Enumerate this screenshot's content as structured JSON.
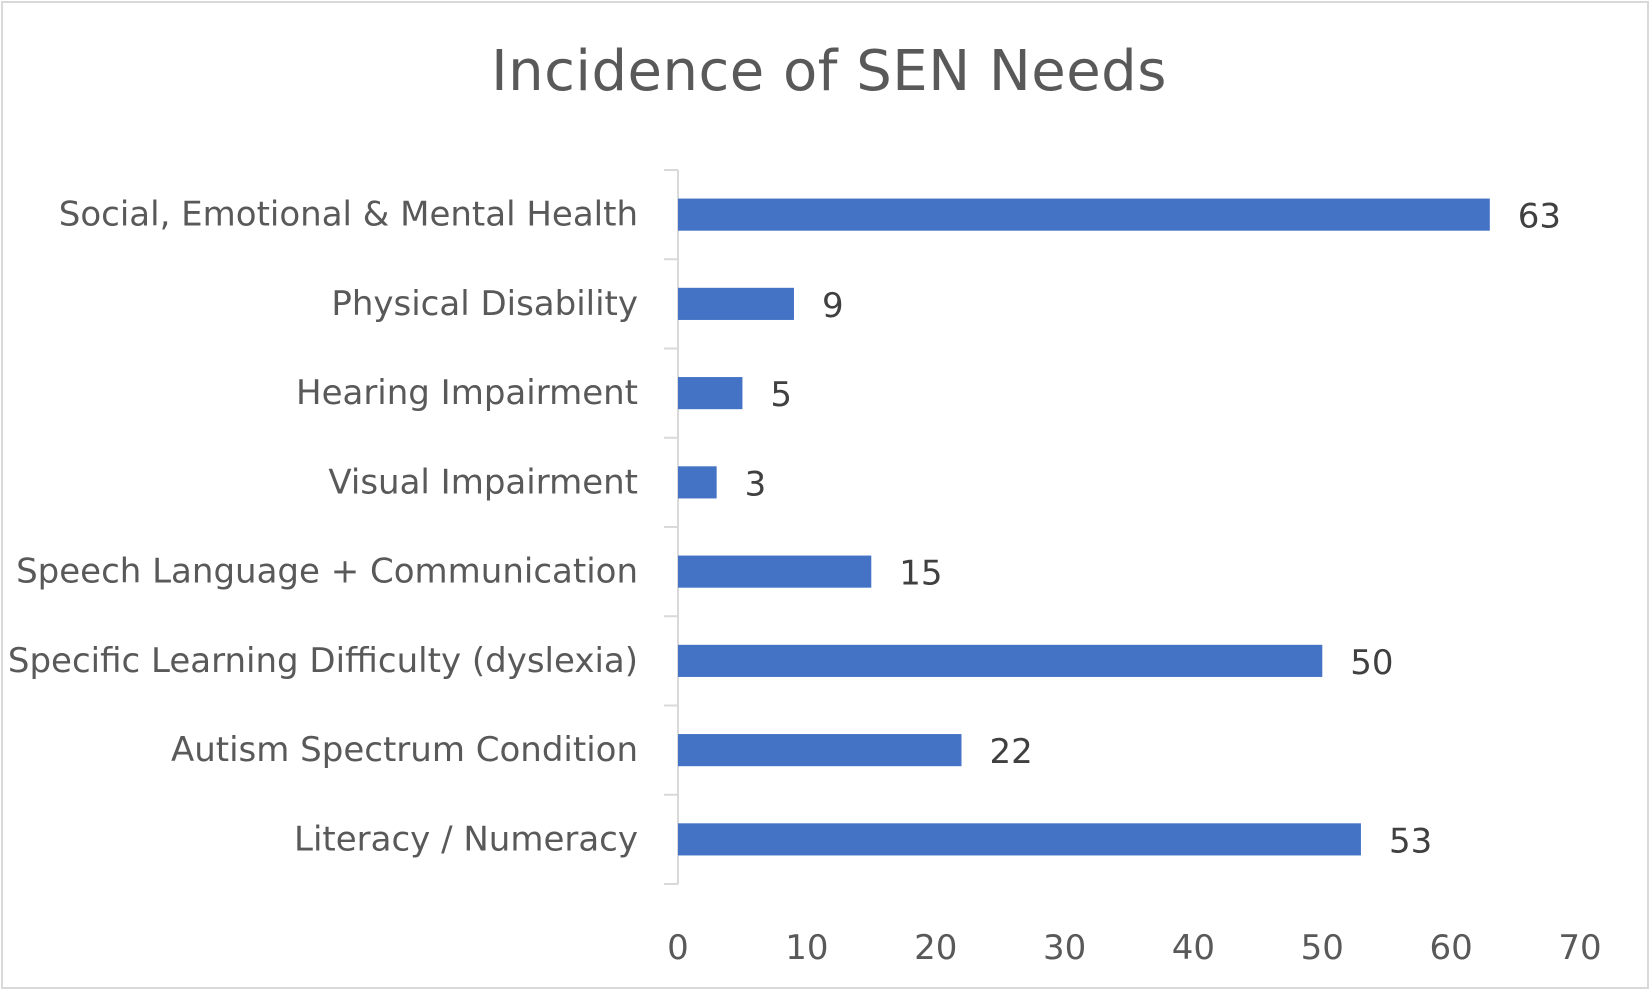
{
  "chart_data": {
    "type": "bar",
    "orientation": "horizontal",
    "title": "Incidence of SEN Needs",
    "categories": [
      "Social, Emotional & Mental Health",
      "Physical Disability",
      "Hearing Impairment",
      "Visual Impairment",
      "Speech Language + Communication",
      "Specific Learning Difficulty (dyslexia)",
      "Autism Spectrum Condition",
      "Literacy / Numeracy"
    ],
    "values": [
      63,
      9,
      5,
      3,
      15,
      50,
      22,
      53
    ],
    "xlabel": "",
    "ylabel": "",
    "xlim": [
      0,
      70
    ],
    "xticks": [
      0,
      10,
      20,
      30,
      40,
      50,
      60,
      70
    ],
    "data_labels": true,
    "grid": false,
    "legend": "none",
    "colors": {
      "bar": "#4472c4",
      "axis": "#d9d9d9",
      "text": "#595959",
      "data_label": "#404040",
      "border": "#d9d9d9"
    }
  }
}
